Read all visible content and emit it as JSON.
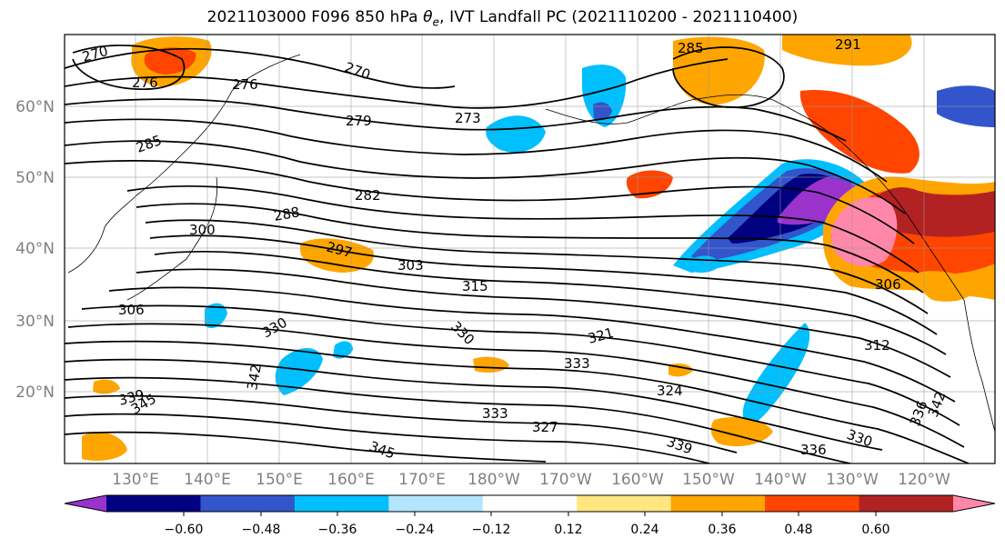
{
  "title": {
    "prefix": "2021103000 F096 850 hPa ",
    "theta_symbol": "θ",
    "theta_sub": "e",
    "suffix": ", IVT Landfall PC (2021110200 - 2021110400)"
  },
  "lat_labels": [
    "60°N",
    "50°N",
    "40°N",
    "30°N",
    "20°N"
  ],
  "lon_labels": [
    "130°E",
    "140°E",
    "150°E",
    "160°E",
    "170°E",
    "180°W",
    "170°W",
    "160°W",
    "150°W",
    "140°W",
    "130°W",
    "120°W"
  ],
  "colorbar": {
    "ticks": [
      "−0.60",
      "−0.48",
      "−0.36",
      "−0.24",
      "−0.12",
      "0.12",
      "0.24",
      "0.36",
      "0.48",
      "0.60"
    ],
    "colors": [
      "#9933cc",
      "#000080",
      "#3355cc",
      "#00bfff",
      "#b3e5fc",
      "#ffffff",
      "#ffe680",
      "#ffa500",
      "#ff4500",
      "#b22222",
      "#ff88aa"
    ]
  },
  "contour_labels": [
    "270",
    "276",
    "276",
    "279",
    "273",
    "270",
    "285",
    "291",
    "285",
    "282",
    "288",
    "300",
    "297",
    "303",
    "315",
    "306",
    "306",
    "321",
    "330",
    "330",
    "333",
    "324",
    "327",
    "336",
    "339",
    "345",
    "333",
    "312",
    "330",
    "342",
    "345",
    "339",
    "336",
    "342"
  ]
}
